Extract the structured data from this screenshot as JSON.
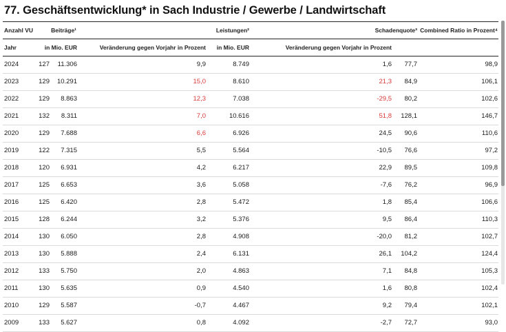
{
  "title": "77. Geschäftsentwicklung* in Sach Industrie / Gewerbe / Landwirtschaft",
  "header": {
    "anzahl_vu": "Anzahl VU",
    "beitraege": "Beiträge¹",
    "leistungen": "Leistungen²",
    "schadenquote": "Schadenquote³",
    "combined_ratio": "Combined Ratio in Prozent⁴"
  },
  "subheader": {
    "jahr": "Jahr",
    "beitraege_unit": "in Mio. EUR",
    "beitraege_change": "Veränderung gegen Vorjahr in Prozent",
    "leistungen_unit": "in Mio. EUR",
    "leistungen_change": "Veränderung gegen Vorjahr in Prozent"
  },
  "colors": {
    "negative_highlight": "#d93a3a",
    "rule": "#222222",
    "row_separator": "#d9d9d9"
  },
  "rows": [
    {
      "jahr": "2024",
      "vu": "127",
      "beitraege": "11.306",
      "b_change": "9,9",
      "b_red": false,
      "leistungen": "8.749",
      "l_change": "1,6",
      "l_red": false,
      "schadenquote": "77,7",
      "combined_ratio": "98,9"
    },
    {
      "jahr": "2023",
      "vu": "129",
      "beitraege": "10.291",
      "b_change": "15,0",
      "b_red": true,
      "leistungen": "8.610",
      "l_change": "21,3",
      "l_red": true,
      "schadenquote": "84,9",
      "combined_ratio": "106,1"
    },
    {
      "jahr": "2022",
      "vu": "129",
      "beitraege": "8.863",
      "b_change": "12,3",
      "b_red": true,
      "leistungen": "7.038",
      "l_change": "-29,5",
      "l_red": true,
      "schadenquote": "80,2",
      "combined_ratio": "102,6"
    },
    {
      "jahr": "2021",
      "vu": "132",
      "beitraege": "8.311",
      "b_change": "7,0",
      "b_red": true,
      "leistungen": "10.616",
      "l_change": "51,8",
      "l_red": true,
      "schadenquote": "128,1",
      "combined_ratio": "146,7"
    },
    {
      "jahr": "2020",
      "vu": "129",
      "beitraege": "7.688",
      "b_change": "6,6",
      "b_red": true,
      "leistungen": "6.926",
      "l_change": "24,5",
      "l_red": false,
      "schadenquote": "90,6",
      "combined_ratio": "110,6"
    },
    {
      "jahr": "2019",
      "vu": "122",
      "beitraege": "7.315",
      "b_change": "5,5",
      "b_red": false,
      "leistungen": "5.564",
      "l_change": "-10,5",
      "l_red": false,
      "schadenquote": "76,6",
      "combined_ratio": "97,2"
    },
    {
      "jahr": "2018",
      "vu": "120",
      "beitraege": "6.931",
      "b_change": "4,2",
      "b_red": false,
      "leistungen": "6.217",
      "l_change": "22,9",
      "l_red": false,
      "schadenquote": "89,5",
      "combined_ratio": "109,8"
    },
    {
      "jahr": "2017",
      "vu": "125",
      "beitraege": "6.653",
      "b_change": "3,6",
      "b_red": false,
      "leistungen": "5.058",
      "l_change": "-7,6",
      "l_red": false,
      "schadenquote": "76,2",
      "combined_ratio": "96,9"
    },
    {
      "jahr": "2016",
      "vu": "125",
      "beitraege": "6.420",
      "b_change": "2,8",
      "b_red": false,
      "leistungen": "5.472",
      "l_change": "1,8",
      "l_red": false,
      "schadenquote": "85,4",
      "combined_ratio": "106,6"
    },
    {
      "jahr": "2015",
      "vu": "128",
      "beitraege": "6.244",
      "b_change": "3,2",
      "b_red": false,
      "leistungen": "5.376",
      "l_change": "9,5",
      "l_red": false,
      "schadenquote": "86,4",
      "combined_ratio": "110,3"
    },
    {
      "jahr": "2014",
      "vu": "130",
      "beitraege": "6.050",
      "b_change": "2,8",
      "b_red": false,
      "leistungen": "4.908",
      "l_change": "-20,0",
      "l_red": false,
      "schadenquote": "81,2",
      "combined_ratio": "102,7"
    },
    {
      "jahr": "2013",
      "vu": "130",
      "beitraege": "5.888",
      "b_change": "2,4",
      "b_red": false,
      "leistungen": "6.131",
      "l_change": "26,1",
      "l_red": false,
      "schadenquote": "104,2",
      "combined_ratio": "124,4"
    },
    {
      "jahr": "2012",
      "vu": "133",
      "beitraege": "5.750",
      "b_change": "2,0",
      "b_red": false,
      "leistungen": "4.863",
      "l_change": "7,1",
      "l_red": false,
      "schadenquote": "84,8",
      "combined_ratio": "105,3"
    },
    {
      "jahr": "2011",
      "vu": "130",
      "beitraege": "5.635",
      "b_change": "0,9",
      "b_red": false,
      "leistungen": "4.540",
      "l_change": "1,6",
      "l_red": false,
      "schadenquote": "80,8",
      "combined_ratio": "102,4"
    },
    {
      "jahr": "2010",
      "vu": "129",
      "beitraege": "5.587",
      "b_change": "-0,7",
      "b_red": false,
      "leistungen": "4.467",
      "l_change": "9,2",
      "l_red": false,
      "schadenquote": "79,4",
      "combined_ratio": "102,1"
    },
    {
      "jahr": "2009",
      "vu": "133",
      "beitraege": "5.627",
      "b_change": "0,8",
      "b_red": false,
      "leistungen": "4.092",
      "l_change": "-2,7",
      "l_red": false,
      "schadenquote": "72,7",
      "combined_ratio": "93,0"
    }
  ]
}
